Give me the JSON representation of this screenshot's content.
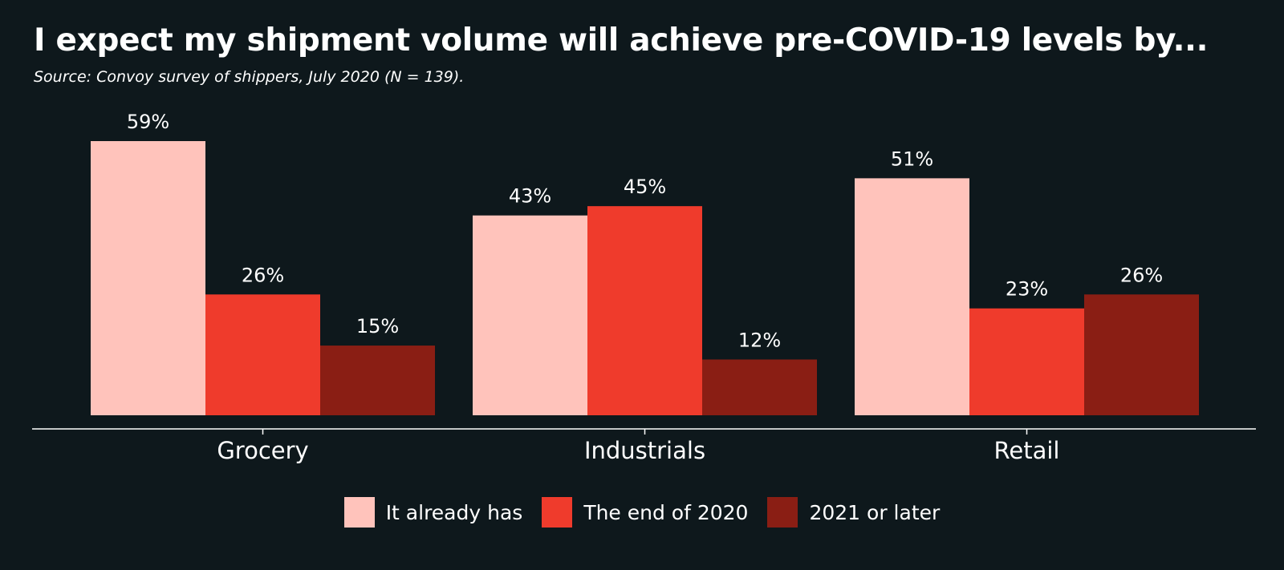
{
  "colors": {
    "background": "#0e181c",
    "text": "#ffffff",
    "axis": "#ffffff"
  },
  "chart_data": {
    "type": "bar",
    "title": "I expect my shipment volume will achieve pre-COVID-19 levels by...",
    "subtitle": "Source: Convoy survey of shippers, July 2020 (N = 139).",
    "categories": [
      "Grocery",
      "Industrials",
      "Retail"
    ],
    "series": [
      {
        "name": "It already has",
        "color": "#ffc3bb",
        "values": [
          59,
          43,
          51
        ],
        "labels": [
          "59%",
          "43%",
          "51%"
        ]
      },
      {
        "name": "The end of 2020",
        "color": "#ef3b2c",
        "values": [
          26,
          45,
          23
        ],
        "labels": [
          "26%",
          "45%",
          "23%"
        ]
      },
      {
        "name": "2021 or later",
        "color": "#8a1e14",
        "values": [
          15,
          12,
          26
        ],
        "labels": [
          "15%",
          "12%",
          "26%"
        ]
      }
    ],
    "ylim": [
      0,
      59
    ],
    "grid": false,
    "legend_position": "bottom"
  }
}
